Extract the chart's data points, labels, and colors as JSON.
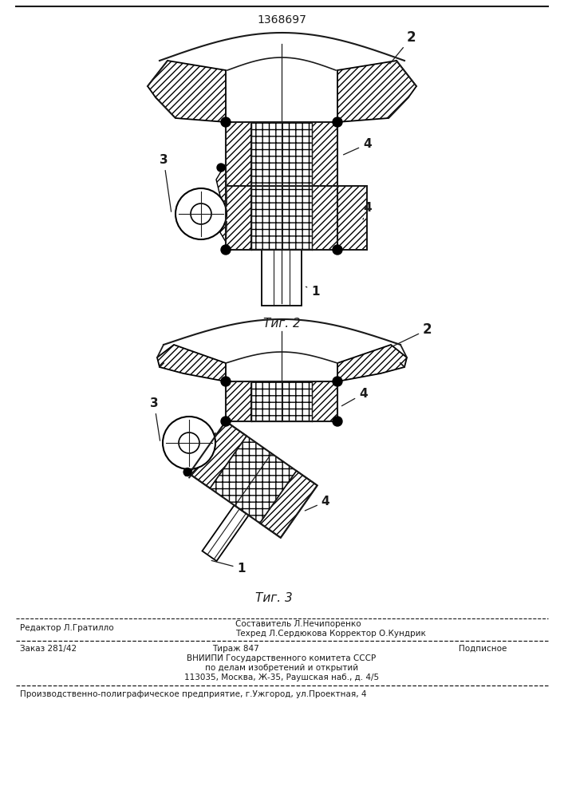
{
  "patent_number": "1368697",
  "fig2_label": "Τиг. 2",
  "fig3_label": "Τиг. 3",
  "footer_line1_left": "Редактор Л.Гратилло",
  "footer_line1_right": "Составитель Л.Нечипоренко",
  "footer_line2_right": "Техред Л.Сердюкова Корректор О.Кундрик",
  "footer_line3_left": "Заказ 281/42",
  "footer_line3_mid": "Тираж 847",
  "footer_line3_right": "Подписное",
  "footer_line4": "ВНИИПИ Государственного комитета СССР",
  "footer_line5": "по делам изобретений и открытий",
  "footer_line6": "113035, Москва, Ж-35, Раушская наб., д. 4/5",
  "footer_last": "Производственно-полиграфическое предприятие, г.Ужгород, ул.Проектная, 4",
  "bg_color": "#ffffff",
  "line_color": "#1a1a1a"
}
